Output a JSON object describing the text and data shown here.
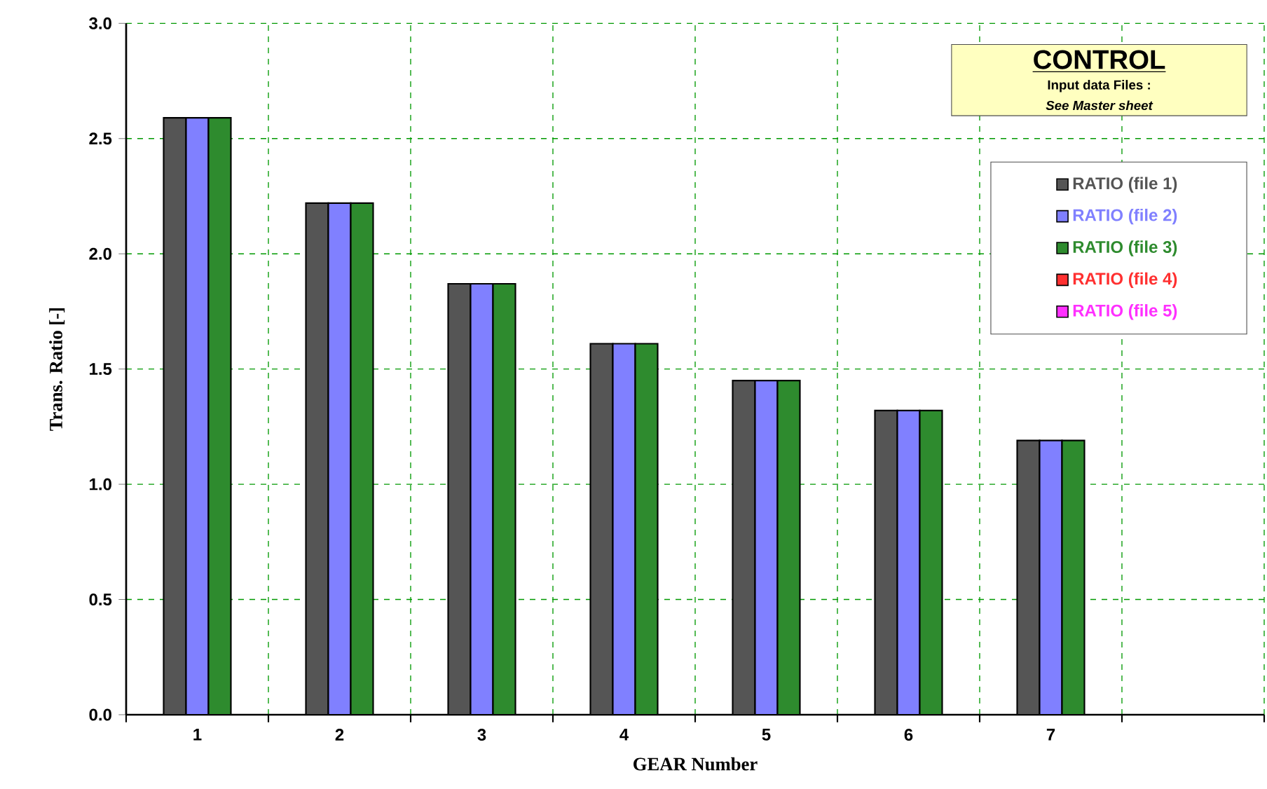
{
  "chart_data": {
    "type": "bar",
    "title": "CONTROL",
    "subtitle": "Input data Files :",
    "annotations": [
      "See Master sheet"
    ],
    "xlabel": "GEAR Number",
    "ylabel": "Trans. Ratio [-]",
    "categories": [
      "1",
      "2",
      "3",
      "4",
      "5",
      "6",
      "7",
      null
    ],
    "series": [
      {
        "name": "RATIO  (file 1)",
        "color": "#555555",
        "values": [
          2.59,
          2.22,
          1.87,
          1.61,
          1.45,
          1.32,
          1.19,
          null
        ]
      },
      {
        "name": "RATIO  (file 2)",
        "color": "#8080ff",
        "values": [
          2.59,
          2.22,
          1.87,
          1.61,
          1.45,
          1.32,
          1.19,
          null
        ]
      },
      {
        "name": "RATIO  (file 3)",
        "color": "#2e8b2e",
        "values": [
          2.59,
          2.22,
          1.87,
          1.61,
          1.45,
          1.32,
          1.19,
          null
        ]
      },
      {
        "name": "RATIO  (file 4)",
        "color": "#ff3030",
        "values": [
          null,
          null,
          null,
          null,
          null,
          null,
          null,
          null
        ]
      },
      {
        "name": "RATIO  (file 5)",
        "color": "#ff30ff",
        "values": [
          null,
          null,
          null,
          null,
          null,
          null,
          null,
          null
        ]
      }
    ],
    "ylim": [
      0,
      3
    ],
    "yticks": [
      {
        "value": 0,
        "label": "0.0"
      },
      {
        "value": 0.5,
        "label": "0.5"
      },
      {
        "value": 1,
        "label": "1.0"
      },
      {
        "value": 1.5,
        "label": "1.5"
      },
      {
        "value": 2,
        "label": "2.0"
      },
      {
        "value": 2.5,
        "label": "2.5"
      },
      {
        "value": 3,
        "label": "3.0"
      }
    ],
    "grid": true,
    "legend": "top right"
  }
}
